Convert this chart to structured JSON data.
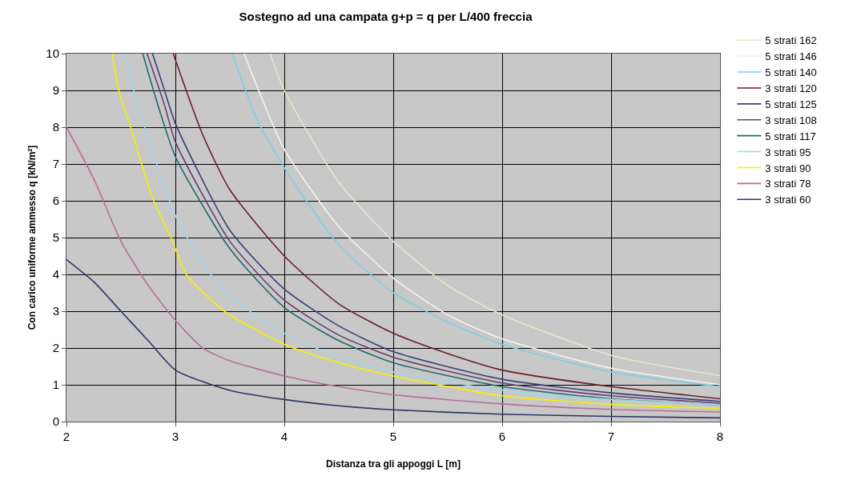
{
  "chart_data": {
    "type": "line",
    "title": "Sostegno ad una campata g+p = q per L/400 freccia",
    "xlabel": "Distanza tra gli appoggi L [m]",
    "ylabel": "Con carico uniforme ammesso q [kN/m²]",
    "xlim": [
      2,
      8
    ],
    "xticks": [
      2,
      3,
      4,
      5,
      6,
      7,
      8
    ],
    "ylim": [
      0,
      10
    ],
    "yticks": [
      0,
      1,
      2,
      3,
      4,
      5,
      6,
      7,
      8,
      9,
      10
    ],
    "grid": true,
    "legend": "right",
    "marker": "none",
    "line_style": "solid",
    "series": [
      {
        "name": "5 strati 162",
        "color": "#e6e6cc",
        "x": [
          3.87,
          4,
          4.5,
          5,
          5.5,
          6,
          7,
          8
        ],
        "values": [
          10,
          9.0,
          6.5,
          4.9,
          3.7,
          2.9,
          1.8,
          1.25
        ]
      },
      {
        "name": "5 strati 146",
        "color": "#f4f4f4",
        "x": [
          3.63,
          4,
          4.5,
          5,
          5.5,
          6,
          7,
          8
        ],
        "values": [
          10,
          7.4,
          5.3,
          3.9,
          2.9,
          2.25,
          1.45,
          1.0
        ]
      },
      {
        "name": "5 strati 140",
        "color": "#7ccfe8",
        "x": [
          3.52,
          3.75,
          4,
          4.5,
          5,
          5.5,
          6,
          7,
          8
        ],
        "values": [
          10,
          8.2,
          6.9,
          4.8,
          3.5,
          2.7,
          2.1,
          1.35,
          0.95
        ]
      },
      {
        "name": "3 strati 120",
        "color": "#6b1f2a",
        "x": [
          2.98,
          3.25,
          3.5,
          4,
          4.5,
          5,
          5.5,
          6,
          7,
          8
        ],
        "values": [
          10,
          7.8,
          6.3,
          4.5,
          3.2,
          2.4,
          1.85,
          1.4,
          0.95,
          0.62
        ]
      },
      {
        "name": "5 strati 125",
        "color": "#3a3f7a",
        "x": [
          2.79,
          2.9,
          3,
          3.5,
          4,
          4.5,
          5,
          6,
          7,
          8
        ],
        "values": [
          10,
          9.0,
          8.1,
          5.2,
          3.6,
          2.6,
          1.9,
          1.15,
          0.78,
          0.55
        ]
      },
      {
        "name": "3 strati 108",
        "color": "#6a3d6e",
        "x": [
          2.74,
          2.9,
          3,
          3.5,
          4,
          4.5,
          5,
          6,
          7,
          8
        ],
        "values": [
          10,
          8.6,
          7.6,
          4.9,
          3.3,
          2.35,
          1.75,
          1.05,
          0.7,
          0.5
        ]
      },
      {
        "name": "5 strati 117",
        "color": "#1f6b6b",
        "x": [
          2.7,
          2.85,
          3,
          3.5,
          4,
          4.5,
          5,
          6,
          7,
          8
        ],
        "values": [
          10,
          8.5,
          7.2,
          4.7,
          3.1,
          2.2,
          1.6,
          0.95,
          0.62,
          0.45
        ]
      },
      {
        "name": "3 strati 95",
        "color": "#9fd8ea",
        "x": [
          2.53,
          2.6,
          2.75,
          3,
          3.25,
          3.5,
          4,
          4.5,
          5,
          6,
          7,
          8
        ],
        "values": [
          10,
          9.2,
          7.7,
          5.6,
          4.3,
          3.4,
          2.4,
          1.75,
          1.35,
          0.85,
          0.6,
          0.45
        ]
      },
      {
        "name": "3 strati 90",
        "color": "#f2f200",
        "x": [
          2.42,
          2.48,
          2.59,
          2.69,
          2.8,
          2.96,
          3.1,
          3.45,
          4,
          4.5,
          5,
          6,
          7,
          8
        ],
        "values": [
          10,
          9,
          8,
          7,
          6,
          5,
          4,
          3,
          2.1,
          1.6,
          1.24,
          0.7,
          0.47,
          0.36
        ]
      },
      {
        "name": "3 strati 78",
        "color": "#b86d9a",
        "x": [
          2,
          2.25,
          2.5,
          2.75,
          3,
          3.25,
          3.5,
          4,
          4.5,
          5,
          6,
          7,
          8
        ],
        "values": [
          8.0,
          6.6,
          4.9,
          3.7,
          2.75,
          2.0,
          1.65,
          1.24,
          0.95,
          0.73,
          0.48,
          0.33,
          0.26
        ]
      },
      {
        "name": "3 strati 60",
        "color": "#2c3566",
        "x": [
          2,
          2.25,
          2.5,
          2.75,
          3,
          3.5,
          4,
          4.5,
          5,
          6,
          7,
          8
        ],
        "values": [
          4.4,
          3.8,
          3.0,
          2.2,
          1.4,
          0.85,
          0.6,
          0.43,
          0.32,
          0.2,
          0.14,
          0.1
        ]
      }
    ]
  }
}
